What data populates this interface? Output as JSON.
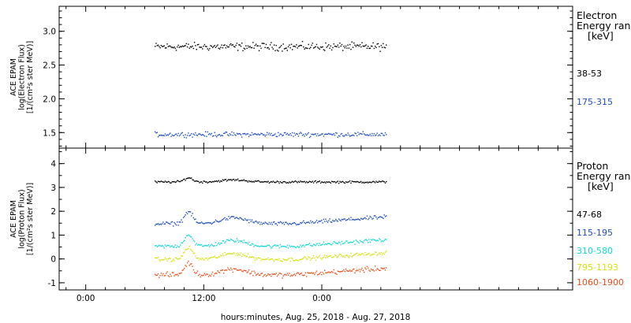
{
  "xlabel": "hours:minutes, Aug. 25, 2018 - Aug. 27, 2018",
  "x_ticks": [
    "0:00",
    "12:00",
    "0:00"
  ],
  "colors": {
    "black": "#000000",
    "blue": "#1f4fbf",
    "cyan": "#10d8d8",
    "yellow": "#d8e010",
    "orange": "#e8501a"
  },
  "chart_data": [
    {
      "type": "scatter",
      "panel": "top",
      "ylabel": [
        "ACE EPAM",
        "log(Electron Flux)",
        "[1/(cm²s ster MeV)]"
      ],
      "y_ticks": [
        "1.5",
        "2.0",
        "2.5",
        "3.0"
      ],
      "ylim": [
        1.27,
        3.37
      ],
      "legend_title": [
        "Electron",
        "Energy ran",
        "[keV]"
      ],
      "series": [
        {
          "name": "38-53",
          "color": "black",
          "x_start_h": 31.0,
          "x_end_h": 54.5,
          "base": 2.78,
          "noise": 0.05
        },
        {
          "name": "175-315",
          "color": "blue",
          "x_start_h": 31.0,
          "x_end_h": 54.5,
          "base": 1.48,
          "noise": 0.03
        }
      ]
    },
    {
      "type": "scatter",
      "panel": "bottom",
      "ylabel": [
        "ACE EPAM",
        "log(Proton Flux)",
        "[1/(cm²s ster MeV)]"
      ],
      "y_ticks": [
        "-1",
        "0",
        "1",
        "2",
        "3",
        "4"
      ],
      "ylim": [
        -1.3,
        4.65
      ],
      "legend_title": [
        "Proton",
        "Energy ran",
        "[keV]"
      ],
      "series": [
        {
          "name": "47-68",
          "color": "black",
          "x_start_h": 31.0,
          "x_end_h": 54.5,
          "base": 3.25,
          "noise": 0.04
        },
        {
          "name": "115-195",
          "color": "blue",
          "x_start_h": 31.0,
          "x_end_h": 54.5,
          "base": 1.5,
          "noise": 0.07
        },
        {
          "name": "310-580",
          "color": "cyan",
          "x_start_h": 31.0,
          "x_end_h": 54.5,
          "base": 0.55,
          "noise": 0.07
        },
        {
          "name": "795-1193",
          "color": "yellow",
          "x_start_h": 31.0,
          "x_end_h": 54.5,
          "base": 0.0,
          "noise": 0.07
        },
        {
          "name": "1060-1900",
          "color": "orange",
          "x_start_h": 31.0,
          "x_end_h": 54.5,
          "base": -0.65,
          "noise": 0.09
        }
      ]
    }
  ],
  "xlim_h": [
    21.3,
    73.5
  ]
}
